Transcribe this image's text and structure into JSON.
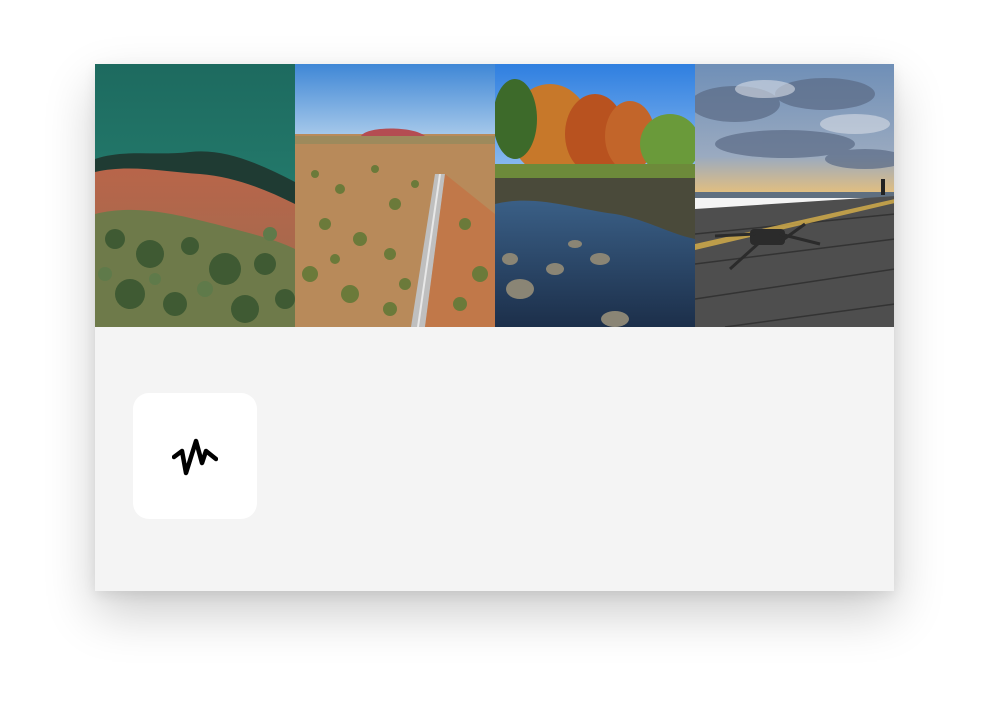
{
  "page": {
    "background_color": "#ffffff",
    "card_background": "#f4f4f4"
  },
  "gallery": {
    "photos": [
      {
        "icon": "aerial-coastline-photo"
      },
      {
        "icon": "outback-road-uluru-photo"
      },
      {
        "icon": "autumn-trees-pond-photo"
      },
      {
        "icon": "drone-on-pier-sunset-photo"
      }
    ]
  },
  "app_tile": {
    "icon": "activity-squiggle-icon",
    "background_color": "#ffffff",
    "icon_color": "#000000"
  }
}
